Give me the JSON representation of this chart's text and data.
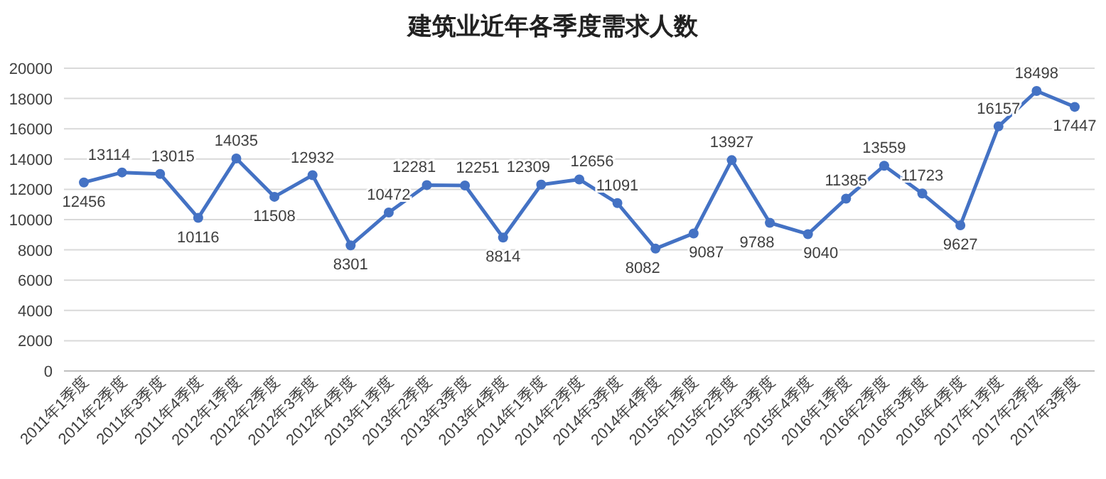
{
  "chart_data": {
    "type": "line",
    "title": "建筑业近年各季度需求人数",
    "categories": [
      "2011年1季度",
      "2011年2季度",
      "2011年3季度",
      "2011年4季度",
      "2012年1季度",
      "2012年2季度",
      "2012年3季度",
      "2012年4季度",
      "2013年1季度",
      "2013年2季度",
      "2013年3季度",
      "2013年4季度",
      "2014年1季度",
      "2014年2季度",
      "2014年3季度",
      "2014年4季度",
      "2015年1季度",
      "2015年2季度",
      "2015年3季度",
      "2015年4季度",
      "2016年1季度",
      "2016年2季度",
      "2016年3季度",
      "2016年4季度",
      "2017年1季度",
      "2017年2季度",
      "2017年3季度"
    ],
    "series": [
      {
        "color": "#4472c4",
        "values": [
          12456,
          13114,
          13015,
          10116,
          14035,
          11508,
          12932,
          8301,
          10472,
          12281,
          12251,
          8814,
          12309,
          12656,
          11091,
          8082,
          9087,
          13927,
          9788,
          9040,
          11385,
          13559,
          11723,
          9627,
          16157,
          18498,
          17447
        ]
      }
    ],
    "ylim": [
      0,
      20000
    ],
    "yticks": [
      0,
      2000,
      4000,
      6000,
      8000,
      10000,
      12000,
      14000,
      16000,
      18000,
      20000
    ],
    "grid": "y",
    "marker": "circle",
    "line_style": "solid",
    "data_labels": true
  }
}
